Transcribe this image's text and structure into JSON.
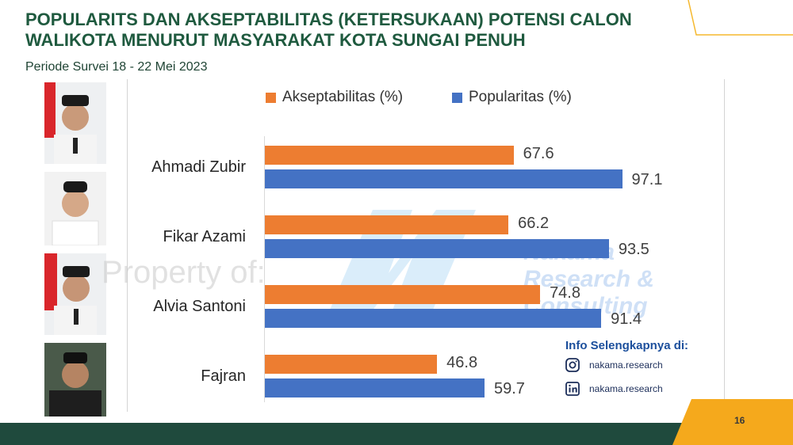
{
  "header": {
    "title_line1": "POPULARITS DAN AKSEPTABILITAS (KETERSUKAAN) POTENSI CALON",
    "title_line2": "WALIKOTA MENURUT MASYARAKAT KOTA SUNGAI PENUH",
    "period": "Periode Survei 18 - 22 Mei 2023"
  },
  "chart_data": {
    "type": "bar",
    "orientation": "horizontal",
    "categories": [
      "Ahmadi Zubir",
      "Fikar Azami",
      "Alvia Santoni",
      "Fajran"
    ],
    "series": [
      {
        "name": "Akseptabilitas (%)",
        "color": "#ed7d31",
        "values": [
          67.6,
          66.2,
          74.8,
          46.8
        ]
      },
      {
        "name": "Popularitas (%)",
        "color": "#4472c4",
        "values": [
          97.1,
          93.5,
          91.4,
          59.7
        ]
      }
    ],
    "xlim": [
      0,
      100
    ],
    "legend": "top",
    "grid": false
  },
  "watermark": {
    "text": "Property of:",
    "brand": [
      "Nakama",
      "Research &",
      "Consulting"
    ]
  },
  "info": {
    "title": "Info Selengkapnya di:",
    "instagram": "nakama.research",
    "linkedin": "nakama.research"
  },
  "footer": {
    "page_number": "16"
  },
  "colors": {
    "title": "#1f5a3f",
    "footer_dark": "#1f4a3d",
    "footer_yellow": "#f5a91c",
    "akseptabilitas": "#ed7d31",
    "popularitas": "#4472c4"
  }
}
